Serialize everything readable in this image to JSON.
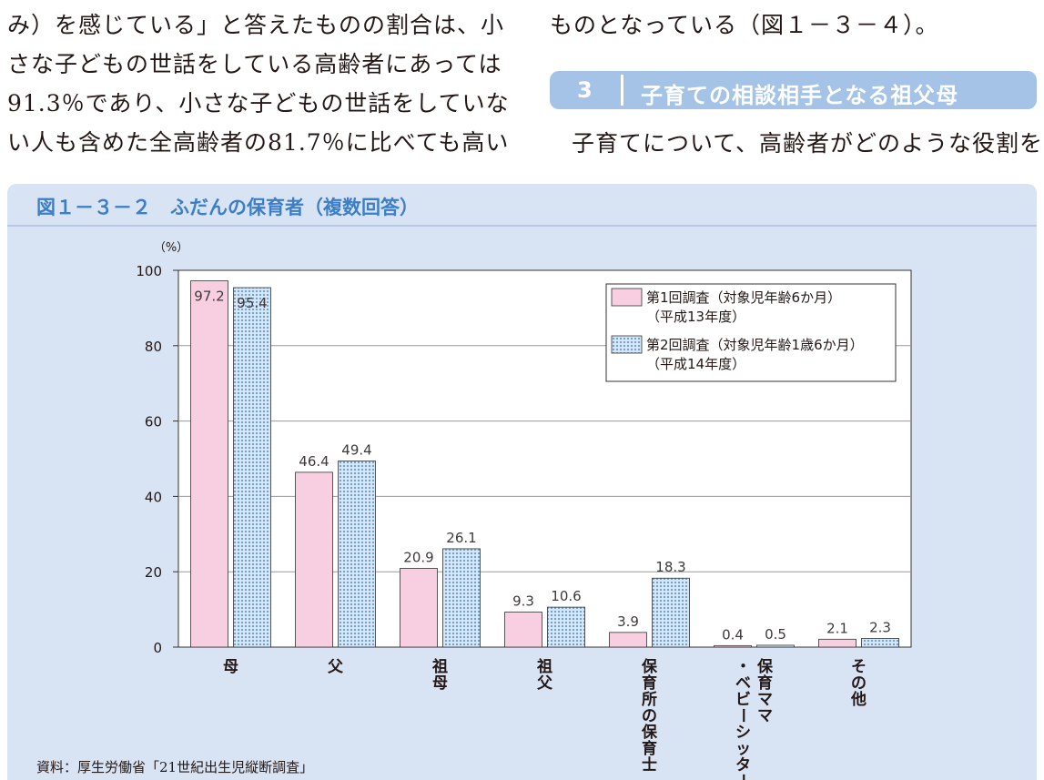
{
  "text": {
    "left_lines": [
      "み）を感じている」と答えたものの割合は、小",
      "さな子どもの世話をしている高齢者にあっては",
      "91.3％であり、小さな子どもの世話をしていな",
      "い人も含めた全高齢者の81.7％に比べても高い"
    ],
    "right_line1": "ものとなっている（図１－３－４）。",
    "section_number": "3",
    "section_title": "子育ての相談相手となる祖父母",
    "right_line2": "子育てについて、高齢者がどのような役割を"
  },
  "figure": {
    "title": "図１－３－２　ふだんの保育者（複数回答）",
    "source": "資料：厚生労働省「21世紀出生児縦断調査」"
  },
  "chart_data": {
    "type": "bar",
    "ylabel": "（%）",
    "ylim": [
      0,
      100
    ],
    "yticks": [
      0,
      20,
      40,
      60,
      80,
      100
    ],
    "grid": true,
    "legend_position": "top-right",
    "categories": [
      "母",
      "父",
      "祖母",
      "祖父",
      "保育所の保育士",
      "保育ママ・ベビーシッター",
      "その他"
    ],
    "series": [
      {
        "name": "第1回調査（対象児年齢6か月）（平成13年度）",
        "legend_lines": [
          "第1回調査（対象児年齢6か月）",
          "（平成13年度）"
        ],
        "values": [
          97.2,
          46.4,
          20.9,
          9.3,
          3.9,
          0.4,
          2.1
        ],
        "labels": [
          "97.2",
          "46.4",
          "20.9",
          "9.3",
          "3.9",
          "0.4",
          "2.1"
        ],
        "color": "#f8cfe0",
        "pattern": "solid"
      },
      {
        "name": "第2回調査（対象児年齢1歳6か月）（平成14年度）",
        "legend_lines": [
          "第2回調査（対象児年齢1歳6か月）",
          "（平成14年度）"
        ],
        "values": [
          95.4,
          49.4,
          26.1,
          10.6,
          18.3,
          0.5,
          2.3
        ],
        "labels": [
          "95.4",
          "49.4",
          "26.1",
          "10.6",
          "18.3",
          "0.5",
          "2.3"
        ],
        "color": "#d6e6f6",
        "pattern": "dotted",
        "dot_color": "#6fa3d6"
      }
    ]
  }
}
